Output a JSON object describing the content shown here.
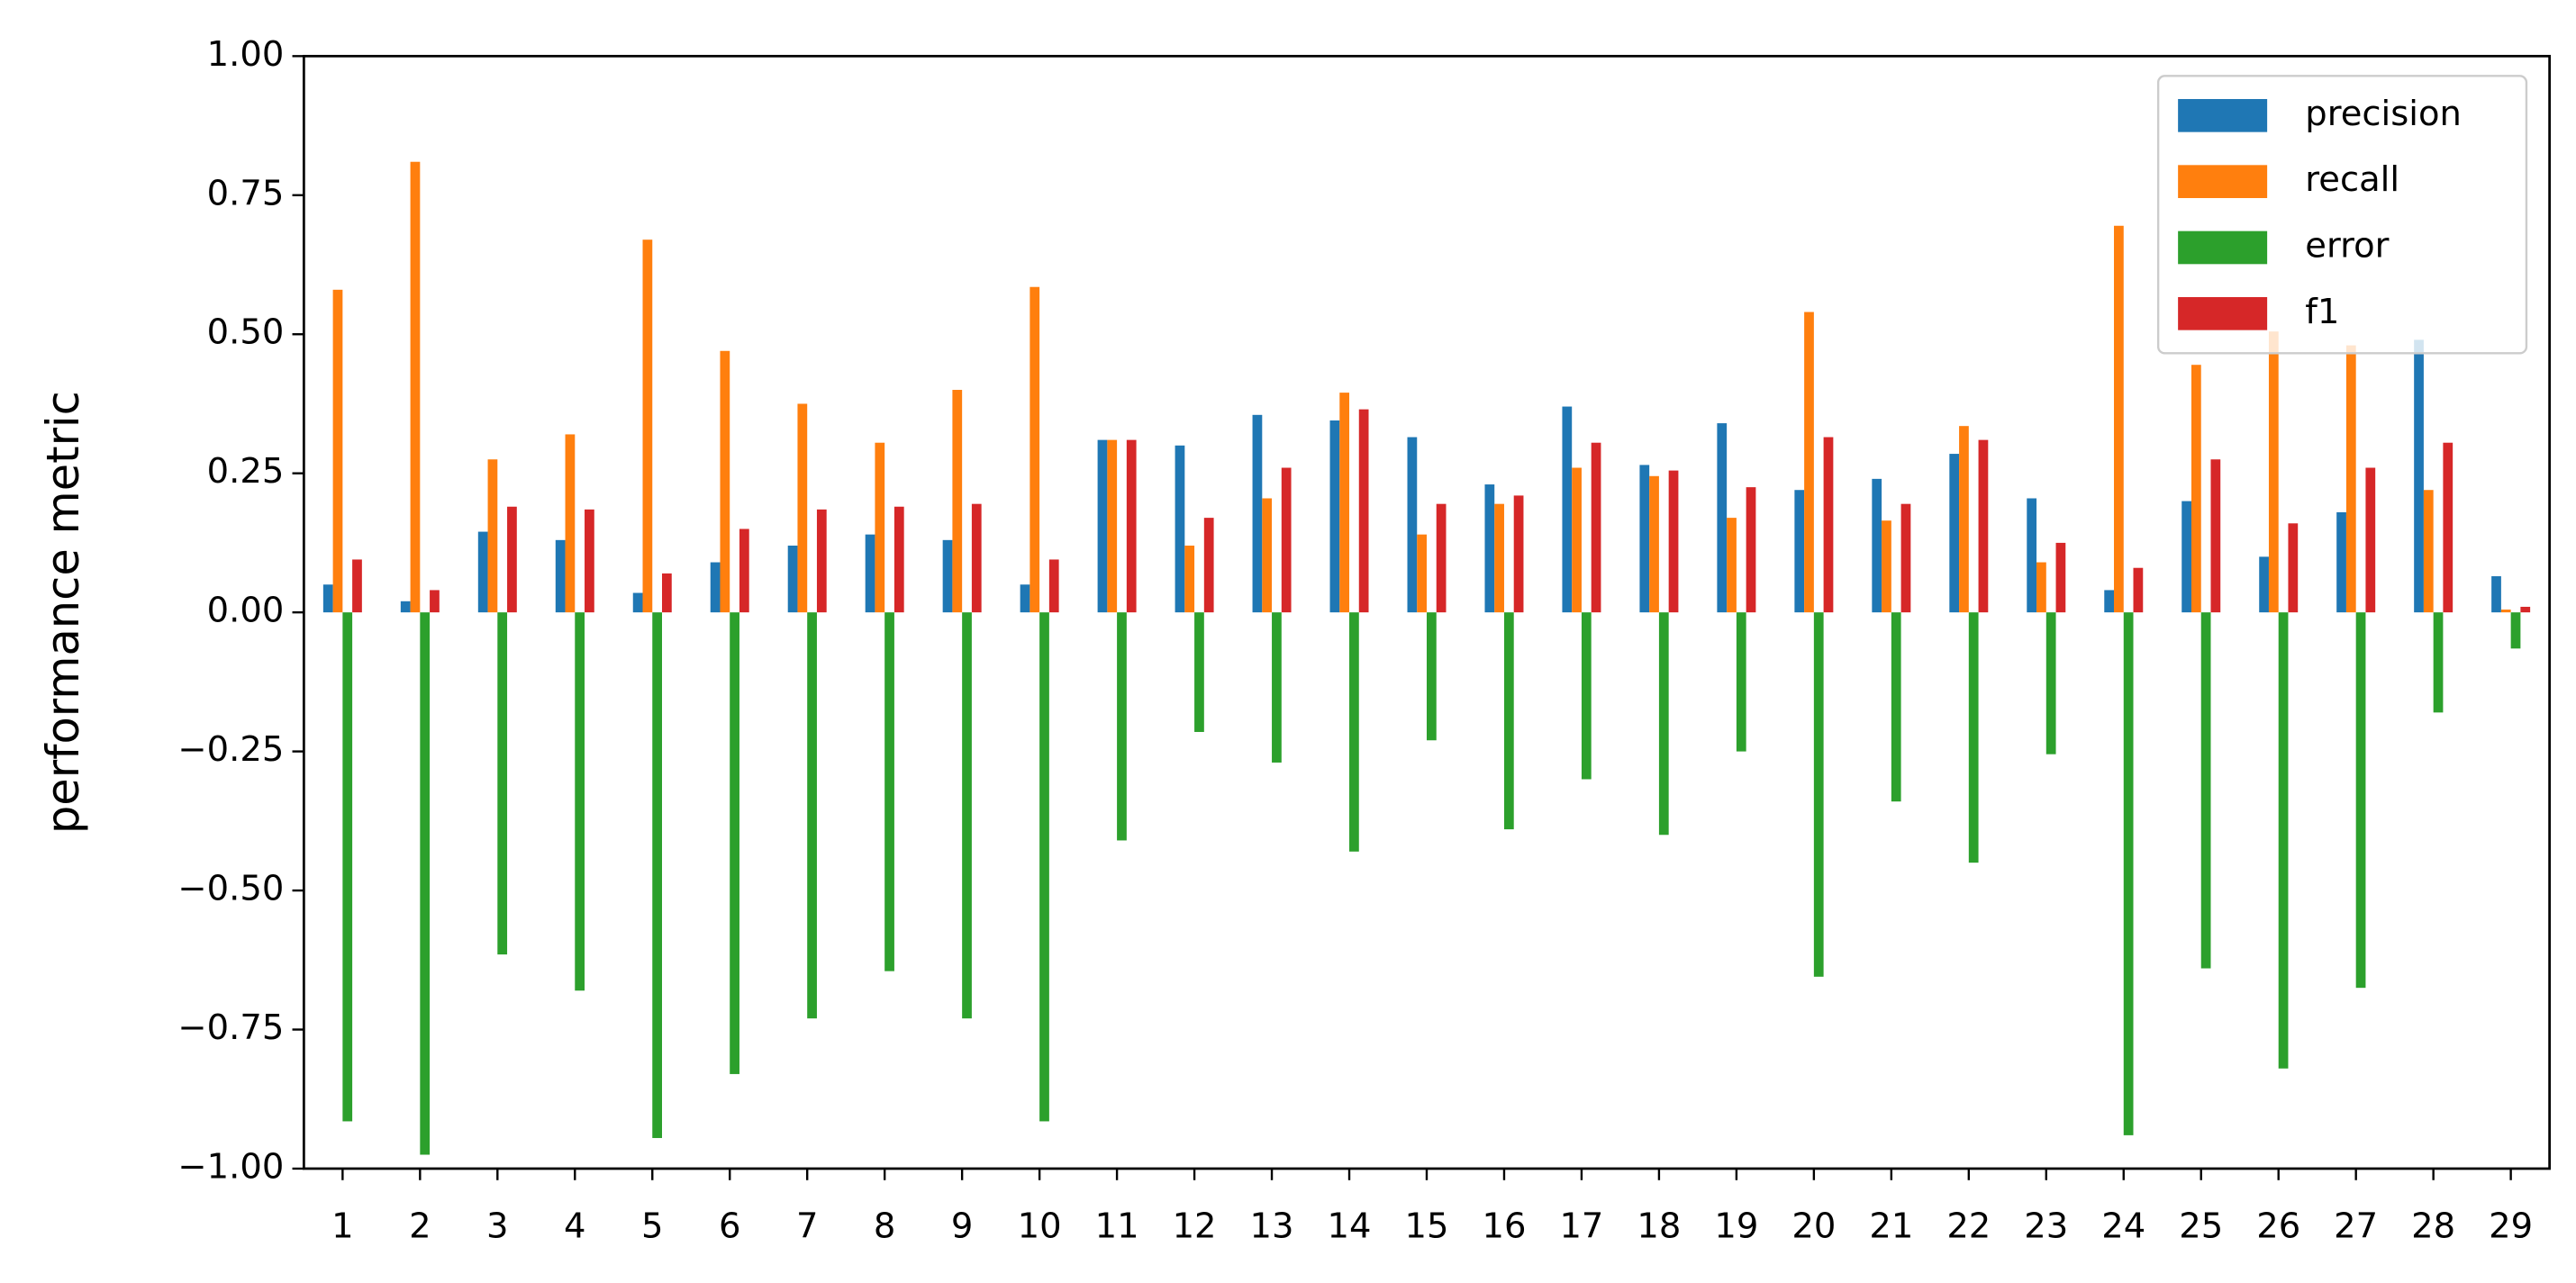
{
  "chart_data": {
    "type": "bar",
    "y_label": "performance metric",
    "categories": [
      "1",
      "2",
      "3",
      "4",
      "5",
      "6",
      "7",
      "8",
      "9",
      "10",
      "11",
      "12",
      "13",
      "14",
      "15",
      "16",
      "17",
      "18",
      "19",
      "20",
      "21",
      "22",
      "23",
      "24",
      "25",
      "26",
      "27",
      "28",
      "29"
    ],
    "series": [
      {
        "name": "precision",
        "color": "#1f77b4",
        "values": [
          0.05,
          0.02,
          0.145,
          0.13,
          0.035,
          0.09,
          0.12,
          0.14,
          0.13,
          0.05,
          0.31,
          0.3,
          0.355,
          0.345,
          0.315,
          0.23,
          0.37,
          0.265,
          0.34,
          0.22,
          0.24,
          0.285,
          0.205,
          0.04,
          0.2,
          0.1,
          0.18,
          0.49,
          0.065
        ]
      },
      {
        "name": "recall",
        "color": "#ff7f0e",
        "values": [
          0.58,
          0.81,
          0.275,
          0.32,
          0.67,
          0.47,
          0.375,
          0.305,
          0.4,
          0.585,
          0.31,
          0.12,
          0.205,
          0.395,
          0.14,
          0.195,
          0.26,
          0.245,
          0.17,
          0.54,
          0.165,
          0.335,
          0.09,
          0.695,
          0.445,
          0.505,
          0.48,
          0.22,
          0.005
        ]
      },
      {
        "name": "error",
        "color": "#2ca02c",
        "values": [
          -0.915,
          -0.975,
          -0.615,
          -0.68,
          -0.945,
          -0.83,
          -0.73,
          -0.645,
          -0.73,
          -0.915,
          -0.41,
          -0.215,
          -0.27,
          -0.43,
          -0.23,
          -0.39,
          -0.3,
          -0.4,
          -0.25,
          -0.655,
          -0.34,
          -0.45,
          -0.255,
          -0.94,
          -0.64,
          -0.82,
          -0.675,
          -0.18,
          -0.065
        ]
      },
      {
        "name": "f1",
        "color": "#d62728",
        "values": [
          0.095,
          0.04,
          0.19,
          0.185,
          0.07,
          0.15,
          0.185,
          0.19,
          0.195,
          0.095,
          0.31,
          0.17,
          0.26,
          0.365,
          0.195,
          0.21,
          0.305,
          0.255,
          0.225,
          0.315,
          0.195,
          0.31,
          0.125,
          0.08,
          0.275,
          0.16,
          0.26,
          0.305,
          0.01
        ]
      }
    ],
    "ylim": [
      -1,
      1
    ],
    "yticks": [
      {
        "value": -1,
        "label": "−1.00"
      },
      {
        "value": -0.75,
        "label": "−0.75"
      },
      {
        "value": -0.5,
        "label": "−0.50"
      },
      {
        "value": -0.25,
        "label": "−0.25"
      },
      {
        "value": 0,
        "label": "0.00"
      },
      0.25,
      {
        "value": 0.5,
        "label": "0.50"
      },
      0.75,
      {
        "value": 1,
        "label": "1.00"
      }
    ],
    "legend": "upper right"
  }
}
